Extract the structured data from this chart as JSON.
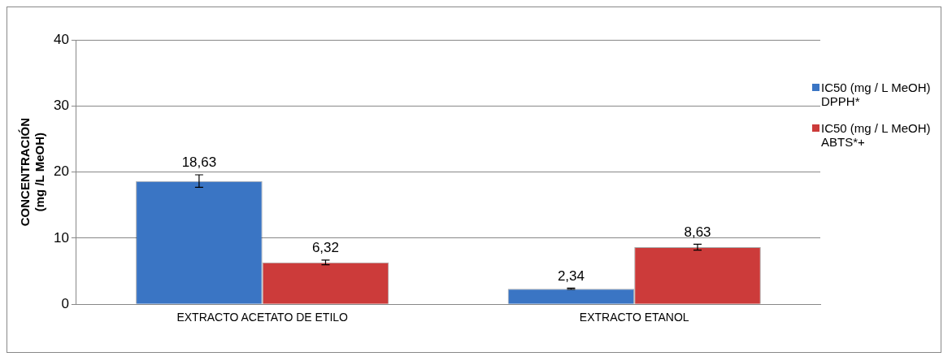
{
  "chart_data": {
    "type": "bar",
    "ylabel": "CONCENTRACIÓN\n(mg /L MeOH)",
    "categories": [
      "EXTRACTO ACETATO DE ETILO",
      "EXTRACTO ETANOL"
    ],
    "series": [
      {
        "name": "IC50 (mg / L MeOH) DPPH*",
        "color": "#3a75c4",
        "values": [
          18.63,
          2.34
        ],
        "errors": [
          0.95,
          0.1
        ],
        "value_labels": [
          "18,63",
          "2,34"
        ]
      },
      {
        "name": "IC50 (mg / L MeOH) ABTS*+",
        "color": "#cc3b3a",
        "values": [
          6.32,
          8.63
        ],
        "errors": [
          0.35,
          0.45
        ],
        "value_labels": [
          "6,32",
          "8,63"
        ]
      }
    ],
    "ylim": [
      0,
      40
    ],
    "yticks": [
      0,
      10,
      20,
      30,
      40
    ],
    "grid": "y",
    "legend": "right"
  }
}
